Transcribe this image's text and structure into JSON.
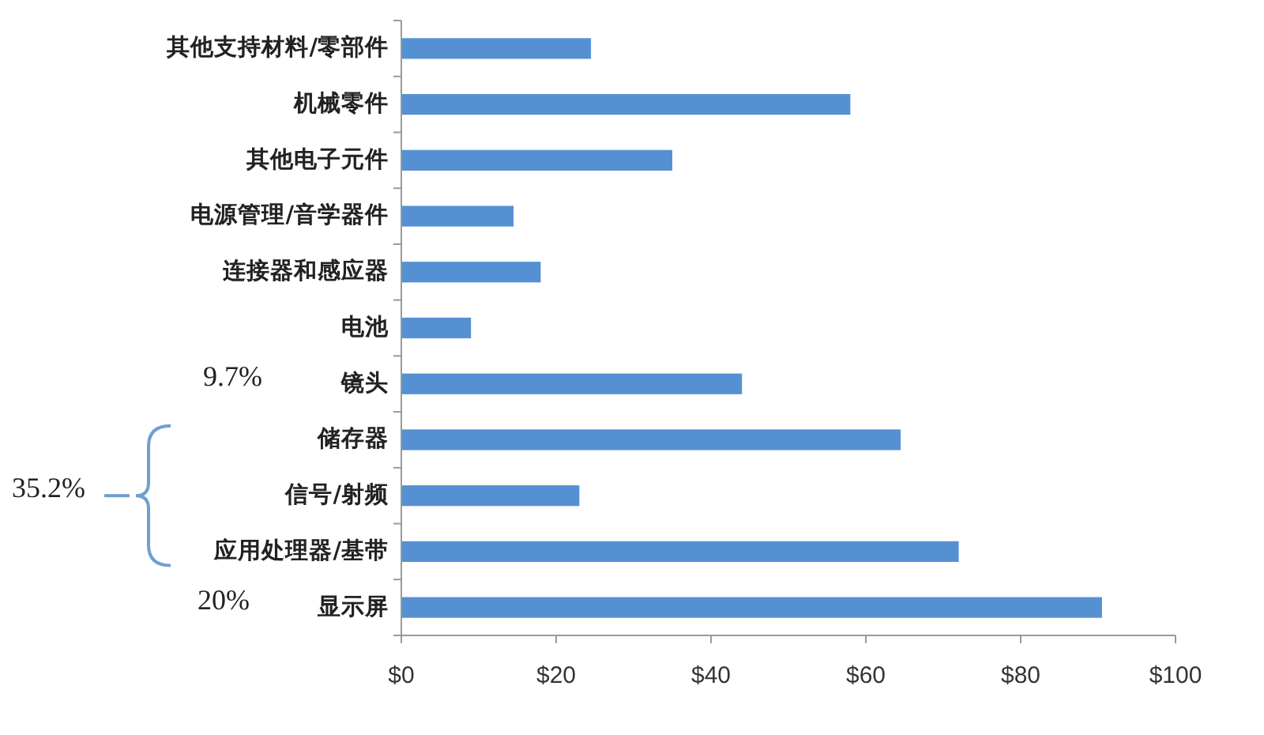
{
  "chart_data": {
    "type": "bar",
    "orientation": "horizontal",
    "categories": [
      "其他支持材料/零部件",
      "机械零件",
      "其他电子元件",
      "电源管理/音学器件",
      "连接器和感应器",
      "电池",
      "镜头",
      "储存器",
      "信号/射频",
      "应用处理器/基带",
      "显示屏"
    ],
    "values": [
      24.5,
      58,
      35,
      14.5,
      18,
      9,
      44,
      64.5,
      23,
      72,
      90.5
    ],
    "color": "#5591d2",
    "xlim": [
      0,
      100
    ],
    "xticks": [
      {
        "value": 0,
        "label": "$0"
      },
      {
        "value": 20,
        "label": "$20"
      },
      {
        "value": 40,
        "label": "$40"
      },
      {
        "value": 60,
        "label": "$60"
      },
      {
        "value": 80,
        "label": "$80"
      },
      {
        "value": 100,
        "label": "$100"
      }
    ],
    "annotations": [
      "9.7%",
      "35.2%",
      "20%"
    ]
  }
}
